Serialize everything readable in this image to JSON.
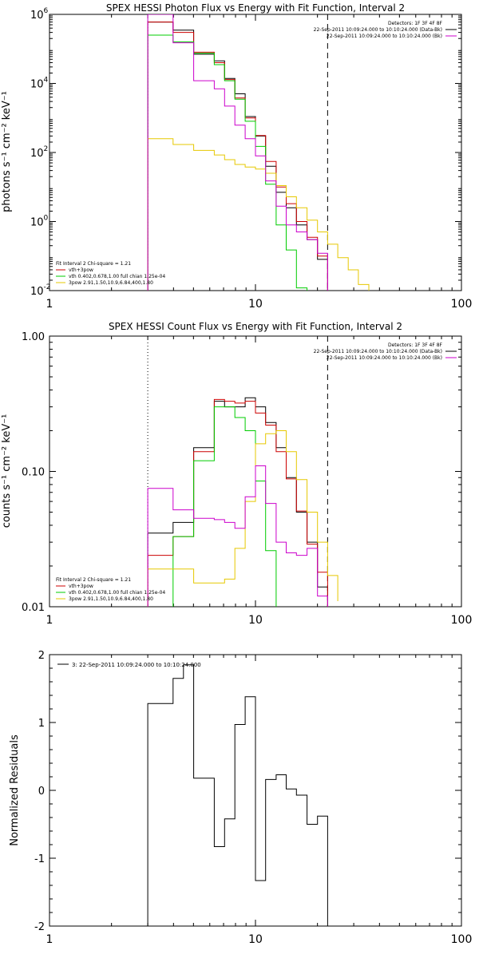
{
  "chart_data": [
    {
      "type": "line",
      "step": true,
      "title": "SPEX HESSI Photon Flux vs Energy with Fit Function, Interval 2",
      "ylabel": "photons s⁻¹ cm⁻² keV⁻¹",
      "xscale": "log",
      "yscale": "log",
      "xlim": [
        1,
        100
      ],
      "ylim": [
        0.01,
        1000000
      ],
      "x_ticks": [
        {
          "v": 1,
          "label": "1"
        },
        {
          "v": 10,
          "label": "10"
        },
        {
          "v": 100,
          "label": "100"
        }
      ],
      "y_ticks": [
        {
          "v": 0.01,
          "base": "10",
          "exp": "-2"
        },
        {
          "v": 1,
          "base": "10",
          "exp": "0"
        },
        {
          "v": 100,
          "base": "10",
          "exp": "2"
        },
        {
          "v": 10000,
          "base": "10",
          "exp": "4"
        },
        {
          "v": 1000000,
          "base": "10",
          "exp": "6"
        }
      ],
      "vlines": [
        {
          "x": 3.0,
          "style": "dotted",
          "color": "#000000"
        },
        {
          "x": 22.4,
          "style": "dashed",
          "color": "#000000"
        }
      ],
      "legend_tr": {
        "header": "Detectors: 1F 3F 4F 8F",
        "rows": [
          {
            "text": "22-Sep-2011 10:09:24.000 to 10:10:24.000 (Data-Bk)",
            "color": "#000000"
          },
          {
            "text": "22-Sep-2011 10:09:24.000 to 10:10:24.000 (Bk)",
            "color": "#cc00cc"
          }
        ]
      },
      "legend_bl": {
        "header": "Fit Interval 2   Chi-square = 1.21",
        "rows": [
          {
            "text": "vth+3pow",
            "color": "#cc0000"
          },
          {
            "text": "vth 0.402,0.678,1.00  full chian 1.25e-04",
            "color": "#00cc00"
          },
          {
            "text": "3pow 2.91,1.50,10.9,6.84,400,1.80",
            "color": "#e6c800"
          }
        ]
      },
      "edges": [
        3.0,
        3.98,
        5.01,
        6.31,
        7.08,
        7.94,
        8.91,
        10.0,
        11.2,
        12.6,
        14.1,
        15.8,
        17.8,
        20.0,
        22.4,
        25.1,
        28.2,
        31.6,
        35.5
      ],
      "series": [
        {
          "name": "Data-Bk",
          "color": "#000000",
          "values": [
            600000,
            350000,
            70000,
            45000,
            14000,
            5000,
            1100,
            300,
            40,
            7,
            2.5,
            0.8,
            0.3,
            0.08
          ]
        },
        {
          "name": "vth+3pow",
          "color": "#cc0000",
          "values": [
            600000,
            300000,
            80000,
            40000,
            13000,
            3800,
            1000,
            310,
            55,
            10,
            3.3,
            1.0,
            0.35,
            0.1
          ]
        },
        {
          "name": "vth",
          "color": "#00cc00",
          "values": [
            250000,
            160000,
            75000,
            35000,
            12000,
            3500,
            800,
            150,
            12,
            0.8,
            0.15,
            0.012
          ]
        },
        {
          "name": "3pow",
          "color": "#e6c800",
          "values": [
            250,
            170,
            115,
            85,
            62,
            45,
            38,
            33,
            25,
            11,
            5.2,
            2.5,
            1.1,
            0.5,
            0.22,
            0.09,
            0.04,
            0.015
          ]
        },
        {
          "name": "Bk",
          "color": "#cc00cc",
          "values": [
            1000000,
            150000,
            12000,
            7000,
            2200,
            620,
            250,
            80,
            15,
            2.8,
            0.8,
            0.5,
            0.3,
            0.12
          ]
        }
      ]
    },
    {
      "type": "line",
      "step": true,
      "title": "SPEX HESSI Count Flux vs Energy with Fit Function, Interval 2",
      "ylabel": "counts s⁻¹ cm⁻² keV⁻¹",
      "xscale": "log",
      "yscale": "log",
      "xlim": [
        1,
        100
      ],
      "ylim": [
        0.01,
        1.0
      ],
      "x_ticks": [
        {
          "v": 1,
          "label": "1"
        },
        {
          "v": 10,
          "label": "10"
        },
        {
          "v": 100,
          "label": "100"
        }
      ],
      "y_ticks": [
        {
          "v": 0.01,
          "label": "0.01"
        },
        {
          "v": 0.1,
          "label": "0.10"
        },
        {
          "v": 1.0,
          "label": "1.00"
        }
      ],
      "vlines": [
        {
          "x": 3.0,
          "style": "dotted",
          "color": "#000000"
        },
        {
          "x": 22.4,
          "style": "dashed",
          "color": "#000000"
        }
      ],
      "legend_tr": {
        "header": "Detectors: 1F 3F 4F 8F",
        "rows": [
          {
            "text": "22-Sep-2011 10:09:24.000 to 10:10:24.000 (Data-Bk)",
            "color": "#000000"
          },
          {
            "text": "22-Sep-2011 10:09:24.000 to 10:10:24.000 (Bk)",
            "color": "#cc00cc"
          }
        ]
      },
      "legend_bl": {
        "header": "Fit Interval 2   Chi-square = 1.21",
        "rows": [
          {
            "text": "vth+3pow",
            "color": "#cc0000"
          },
          {
            "text": "vth 0.402,0.678,1.00  full chian 1.25e-04",
            "color": "#00cc00"
          },
          {
            "text": "3pow 2.91,1.50,10.9,6.84,400,1.80",
            "color": "#e6c800"
          }
        ]
      },
      "edges": [
        3.0,
        3.98,
        5.01,
        6.31,
        7.08,
        7.94,
        8.91,
        10.0,
        11.2,
        12.6,
        14.1,
        15.8,
        17.8,
        20.0,
        22.4,
        25.1
      ],
      "series": [
        {
          "name": "Data-Bk",
          "color": "#000000",
          "values": [
            0.035,
            0.042,
            0.15,
            0.33,
            0.3,
            0.3,
            0.35,
            0.3,
            0.23,
            0.15,
            0.09,
            0.05,
            0.03,
            0.014
          ]
        },
        {
          "name": "vth+3pow",
          "color": "#cc0000",
          "values": [
            0.024,
            0.033,
            0.14,
            0.34,
            0.33,
            0.32,
            0.33,
            0.27,
            0.22,
            0.14,
            0.088,
            0.051,
            0.029,
            0.018
          ]
        },
        {
          "name": "vth",
          "color": "#00cc00",
          "values": [
            0.008,
            0.033,
            0.12,
            0.3,
            0.3,
            0.25,
            0.2,
            0.085,
            0.026,
            0.0095
          ]
        },
        {
          "name": "3pow",
          "color": "#e6c800",
          "values": [
            0.019,
            0.019,
            0.015,
            0.015,
            0.016,
            0.027,
            0.06,
            0.16,
            0.19,
            0.2,
            0.14,
            0.087,
            0.05,
            0.03,
            0.017,
            0.011
          ]
        },
        {
          "name": "Bk",
          "color": "#cc00cc",
          "values": [
            0.075,
            0.052,
            0.045,
            0.044,
            0.042,
            0.038,
            0.065,
            0.11,
            0.058,
            0.03,
            0.025,
            0.024,
            0.027,
            0.012
          ]
        }
      ]
    },
    {
      "type": "line",
      "step": true,
      "title": "",
      "ylabel": "Normalized Residuals",
      "xscale": "log",
      "yscale": "linear",
      "xlim": [
        1,
        100
      ],
      "ylim": [
        -2,
        2
      ],
      "x_ticks": [
        {
          "v": 1,
          "label": "1"
        },
        {
          "v": 10,
          "label": "10"
        },
        {
          "v": 100,
          "label": "100"
        }
      ],
      "y_ticks": [
        {
          "v": -2,
          "label": "-2"
        },
        {
          "v": -1,
          "label": "-1"
        },
        {
          "v": 0,
          "label": "0"
        },
        {
          "v": 1,
          "label": "1"
        },
        {
          "v": 2,
          "label": "2"
        }
      ],
      "legend_tl": {
        "rows": [
          {
            "text": "3: 22-Sep-2011 10:09:24.000 to 10:10:24.000",
            "color": "#000000"
          }
        ]
      },
      "edges": [
        3.0,
        3.98,
        4.47,
        5.01,
        6.31,
        7.08,
        7.94,
        8.91,
        10.0,
        11.2,
        12.6,
        14.1,
        15.8,
        17.8,
        20.0,
        22.4
      ],
      "series": [
        {
          "name": "",
          "color": "#000000",
          "values": [
            1.28,
            1.65,
            1.85,
            0.18,
            -0.83,
            -0.42,
            0.97,
            1.38,
            -1.33,
            0.16,
            0.23,
            0.02,
            -0.07,
            -0.5,
            -0.38
          ]
        }
      ]
    }
  ]
}
